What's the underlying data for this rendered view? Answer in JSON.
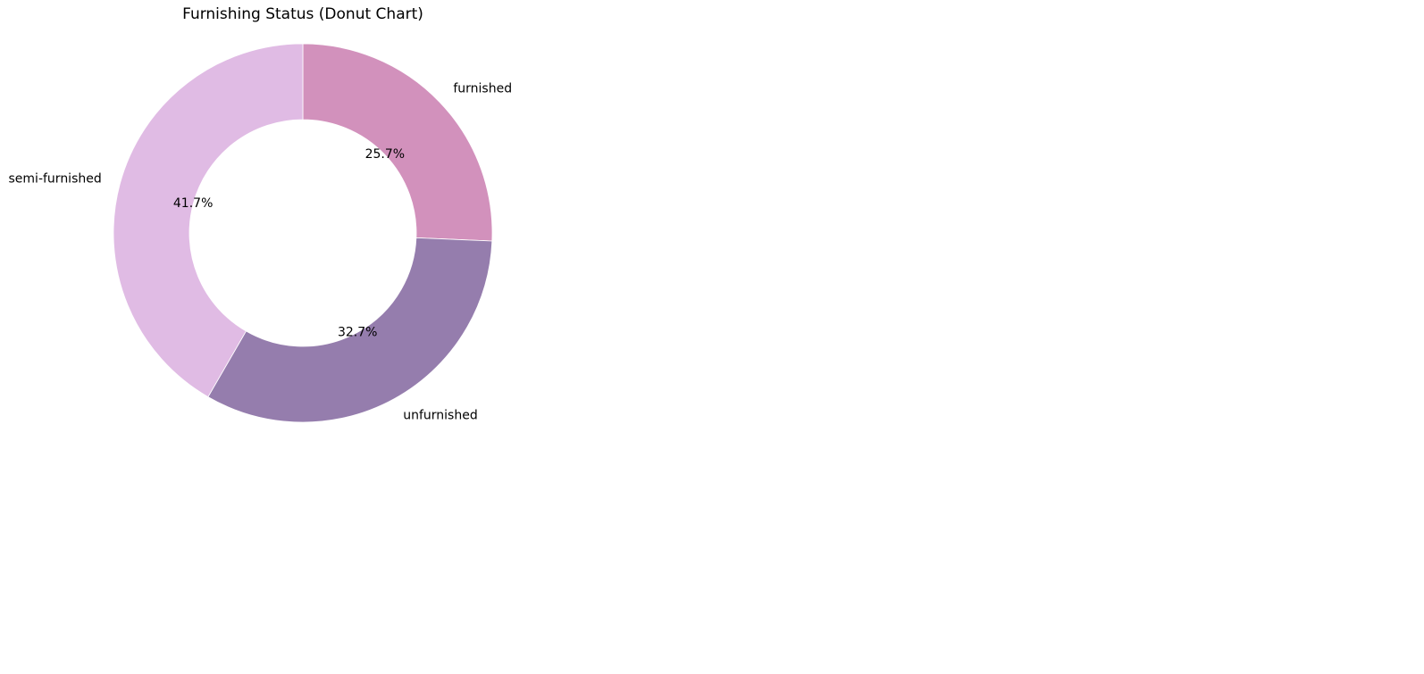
{
  "chart_data": {
    "type": "pie",
    "title": "Furnishing Status (Donut Chart)",
    "donut": true,
    "start_angle_deg": 90,
    "direction": "clockwise",
    "slices": [
      {
        "label": "furnished",
        "value": 25.7,
        "pct_label": "25.7%",
        "color": "#d291bc"
      },
      {
        "label": "unfurnished",
        "value": 32.7,
        "pct_label": "32.7%",
        "color": "#957dad"
      },
      {
        "label": "semi-furnished",
        "value": 41.7,
        "pct_label": "41.7%",
        "color": "#e0bbe4"
      }
    ]
  }
}
